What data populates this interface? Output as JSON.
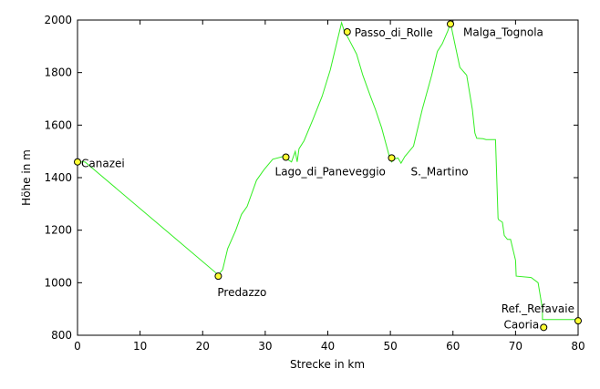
{
  "chart_data": {
    "type": "line",
    "xlabel": "Strecke in km",
    "ylabel": "Höhe in m",
    "xlim": [
      0,
      80
    ],
    "ylim": [
      800,
      2000
    ],
    "x_ticks": [
      0,
      10,
      20,
      30,
      40,
      50,
      60,
      70,
      80
    ],
    "y_ticks": [
      800,
      1000,
      1200,
      1400,
      1600,
      1800,
      2000
    ],
    "line_color": "#33ee22",
    "marker_color": "#ffff33",
    "profile": {
      "x": [
        0,
        1.2,
        22.5,
        23.2,
        24,
        25.3,
        26.2,
        27.1,
        28.6,
        29.8,
        31.2,
        32.8,
        33.2,
        34.2,
        34.8,
        35.1,
        35.4,
        36.2,
        37.6,
        39.1,
        40.4,
        41.4,
        42.2,
        42.6,
        43.3,
        44.6,
        45.6,
        46.8,
        47.6,
        48.6,
        49.5,
        49.9,
        50.2,
        50.6,
        51.2,
        51.7,
        52.3,
        53.7,
        55.1,
        56.6,
        57.5,
        58.3,
        59.2,
        59.6,
        60.3,
        61.1,
        62.2,
        63.1,
        63.5,
        63.8,
        64.8,
        65.3,
        66.8,
        67.2,
        67.3,
        67.9,
        68.2,
        68.7,
        69.2,
        70,
        70.1,
        72.5,
        73.6,
        74.3,
        74.3,
        79.8
      ],
      "y": [
        1460,
        1460,
        1030,
        1050,
        1130,
        1200,
        1260,
        1290,
        1390,
        1430,
        1470,
        1480,
        1475,
        1460,
        1500,
        1460,
        1510,
        1540,
        1620,
        1710,
        1810,
        1910,
        1990,
        1960,
        1930,
        1870,
        1790,
        1710,
        1660,
        1590,
        1510,
        1475,
        1460,
        1470,
        1475,
        1455,
        1480,
        1520,
        1660,
        1790,
        1880,
        1910,
        1960,
        1990,
        1910,
        1820,
        1790,
        1660,
        1570,
        1550,
        1548,
        1545,
        1545,
        1245,
        1240,
        1230,
        1180,
        1165,
        1165,
        1085,
        1025,
        1020,
        1000,
        900,
        860,
        860
      ]
    },
    "points": [
      {
        "name": "Canazei",
        "x": 0,
        "y": 1460
      },
      {
        "name": "Predazzo",
        "x": 22.5,
        "y": 1025
      },
      {
        "name": "Lago_di_Paneveggio",
        "x": 33.3,
        "y": 1478
      },
      {
        "name": "Passo_di_Rolle",
        "x": 43.1,
        "y": 1955
      },
      {
        "name": "S._Martino",
        "x": 50.2,
        "y": 1475
      },
      {
        "name": "Malga_Tognola",
        "x": 59.6,
        "y": 1985
      },
      {
        "name": "Ref._Refavaie",
        "x": 80,
        "y": 855
      },
      {
        "name": "Caoria",
        "x": 74.5,
        "y": 830
      }
    ]
  }
}
